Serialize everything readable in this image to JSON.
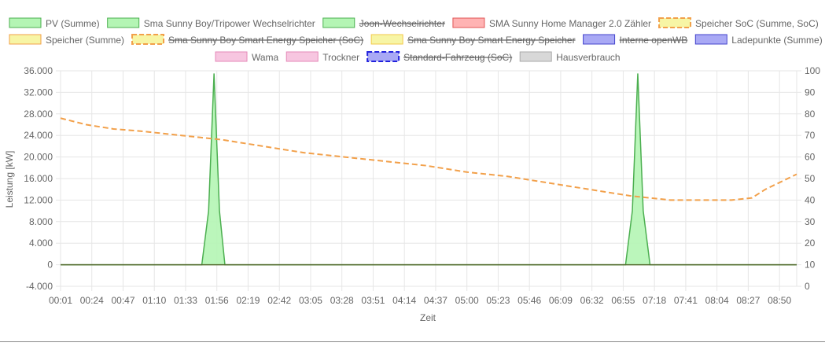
{
  "chart_data": {
    "type": "line",
    "xlabel": "Zeit",
    "ylabel": "Leistung [kW]",
    "y_left_range": [
      -4000,
      36000
    ],
    "y_left_ticks": [
      "36.000",
      "32.000",
      "28.000",
      "24.000",
      "20.000",
      "16.000",
      "12.000",
      "8.000",
      "4.000",
      "0",
      "-4.000"
    ],
    "y_right_range": [
      0,
      100
    ],
    "y_right_ticks": [
      "100",
      "90",
      "80",
      "70",
      "60",
      "50",
      "40",
      "30",
      "20",
      "10",
      "0"
    ],
    "x_ticks": [
      "00:01",
      "00:24",
      "00:47",
      "01:10",
      "01:33",
      "01:56",
      "02:19",
      "02:42",
      "03:05",
      "03:28",
      "03:51",
      "04:14",
      "04:37",
      "05:00",
      "05:23",
      "05:46",
      "06:09",
      "06:32",
      "06:55",
      "07:18",
      "07:41",
      "08:04",
      "08:27",
      "08:50"
    ],
    "x_range_minutes": [
      1,
      543
    ],
    "grid": true,
    "legend_position": "top",
    "legend": [
      {
        "label": "PV (Summe)",
        "fill": "#b4f5b4",
        "stroke": "#4caf50",
        "dashed": false,
        "hidden": false
      },
      {
        "label": "Sma Sunny Boy/Tripower Wechselrichter",
        "fill": "#b4f5b4",
        "stroke": "#4caf50",
        "dashed": false,
        "hidden": false
      },
      {
        "label": "Joon-Wechselrichter",
        "fill": "#b4f5b4",
        "stroke": "#4caf50",
        "dashed": false,
        "hidden": true
      },
      {
        "label": "SMA Sunny Home Manager 2.0 Zähler",
        "fill": "#ffb3b3",
        "stroke": "#e05555",
        "dashed": false,
        "hidden": false
      },
      {
        "label": "Speicher SoC (Summe, SoC)",
        "fill": "#f7f5a5",
        "stroke": "#f2a04a",
        "dashed": true,
        "hidden": false
      },
      {
        "label": "Speicher (Summe)",
        "fill": "#f7f5a5",
        "stroke": "#f2a04a",
        "dashed": false,
        "hidden": false
      },
      {
        "label": "Sma Sunny Boy Smart Energy Speicher (SoC)",
        "fill": "#f7f5a5",
        "stroke": "#f2a04a",
        "dashed": true,
        "hidden": true
      },
      {
        "label": "Sma Sunny Boy Smart Energy Speicher",
        "fill": "#f7f5a5",
        "stroke": "#f2c94a",
        "dashed": false,
        "hidden": true
      },
      {
        "label": "Interne openWB",
        "fill": "#a9a9f5",
        "stroke": "#4444cc",
        "dashed": false,
        "hidden": true
      },
      {
        "label": "Ladepunkte (Summe)",
        "fill": "#a9a9f5",
        "stroke": "#4444cc",
        "dashed": false,
        "hidden": false
      },
      {
        "label": "Wama",
        "fill": "#f7c6e0",
        "stroke": "#e48ab8",
        "dashed": false,
        "hidden": false
      },
      {
        "label": "Trockner",
        "fill": "#f7c6e0",
        "stroke": "#e48ab8",
        "dashed": false,
        "hidden": false
      },
      {
        "label": "Standard-Fahrzeug (SoC)",
        "fill": "#a9a9f5",
        "stroke": "#2222dd",
        "dashed": true,
        "hidden": true
      },
      {
        "label": "Hausverbrauch",
        "fill": "#d8d8d8",
        "stroke": "#aaaaaa",
        "dashed": false,
        "hidden": false
      }
    ],
    "series": [
      {
        "name": "PV (Summe)",
        "axis": "left",
        "color": "#4caf50",
        "fill": "#b4f5b4",
        "points": [
          [
            1,
            0
          ],
          [
            105,
            0
          ],
          [
            110,
            10000
          ],
          [
            114,
            35500
          ],
          [
            118,
            10000
          ],
          [
            122,
            0
          ],
          [
            417,
            0
          ],
          [
            422,
            10000
          ],
          [
            426,
            35500
          ],
          [
            430,
            10000
          ],
          [
            435,
            0
          ],
          [
            543,
            0
          ]
        ]
      },
      {
        "name": "Speicher SoC (Summe, SoC)",
        "axis": "right",
        "color": "#f2a04a",
        "dashed": true,
        "points": [
          [
            1,
            78
          ],
          [
            20,
            75
          ],
          [
            40,
            73
          ],
          [
            60,
            72
          ],
          [
            90,
            70
          ],
          [
            120,
            68
          ],
          [
            150,
            65
          ],
          [
            180,
            62
          ],
          [
            210,
            60
          ],
          [
            240,
            58
          ],
          [
            270,
            56
          ],
          [
            300,
            53
          ],
          [
            330,
            51
          ],
          [
            360,
            48
          ],
          [
            390,
            45
          ],
          [
            420,
            42
          ],
          [
            450,
            40
          ],
          [
            480,
            40
          ],
          [
            495,
            40
          ],
          [
            510,
            41
          ],
          [
            520,
            45
          ],
          [
            543,
            52
          ]
        ]
      },
      {
        "name": "Speicher (Summe)",
        "axis": "left",
        "color": "#556b2f",
        "points": [
          [
            1,
            0
          ],
          [
            543,
            0
          ]
        ]
      }
    ]
  }
}
